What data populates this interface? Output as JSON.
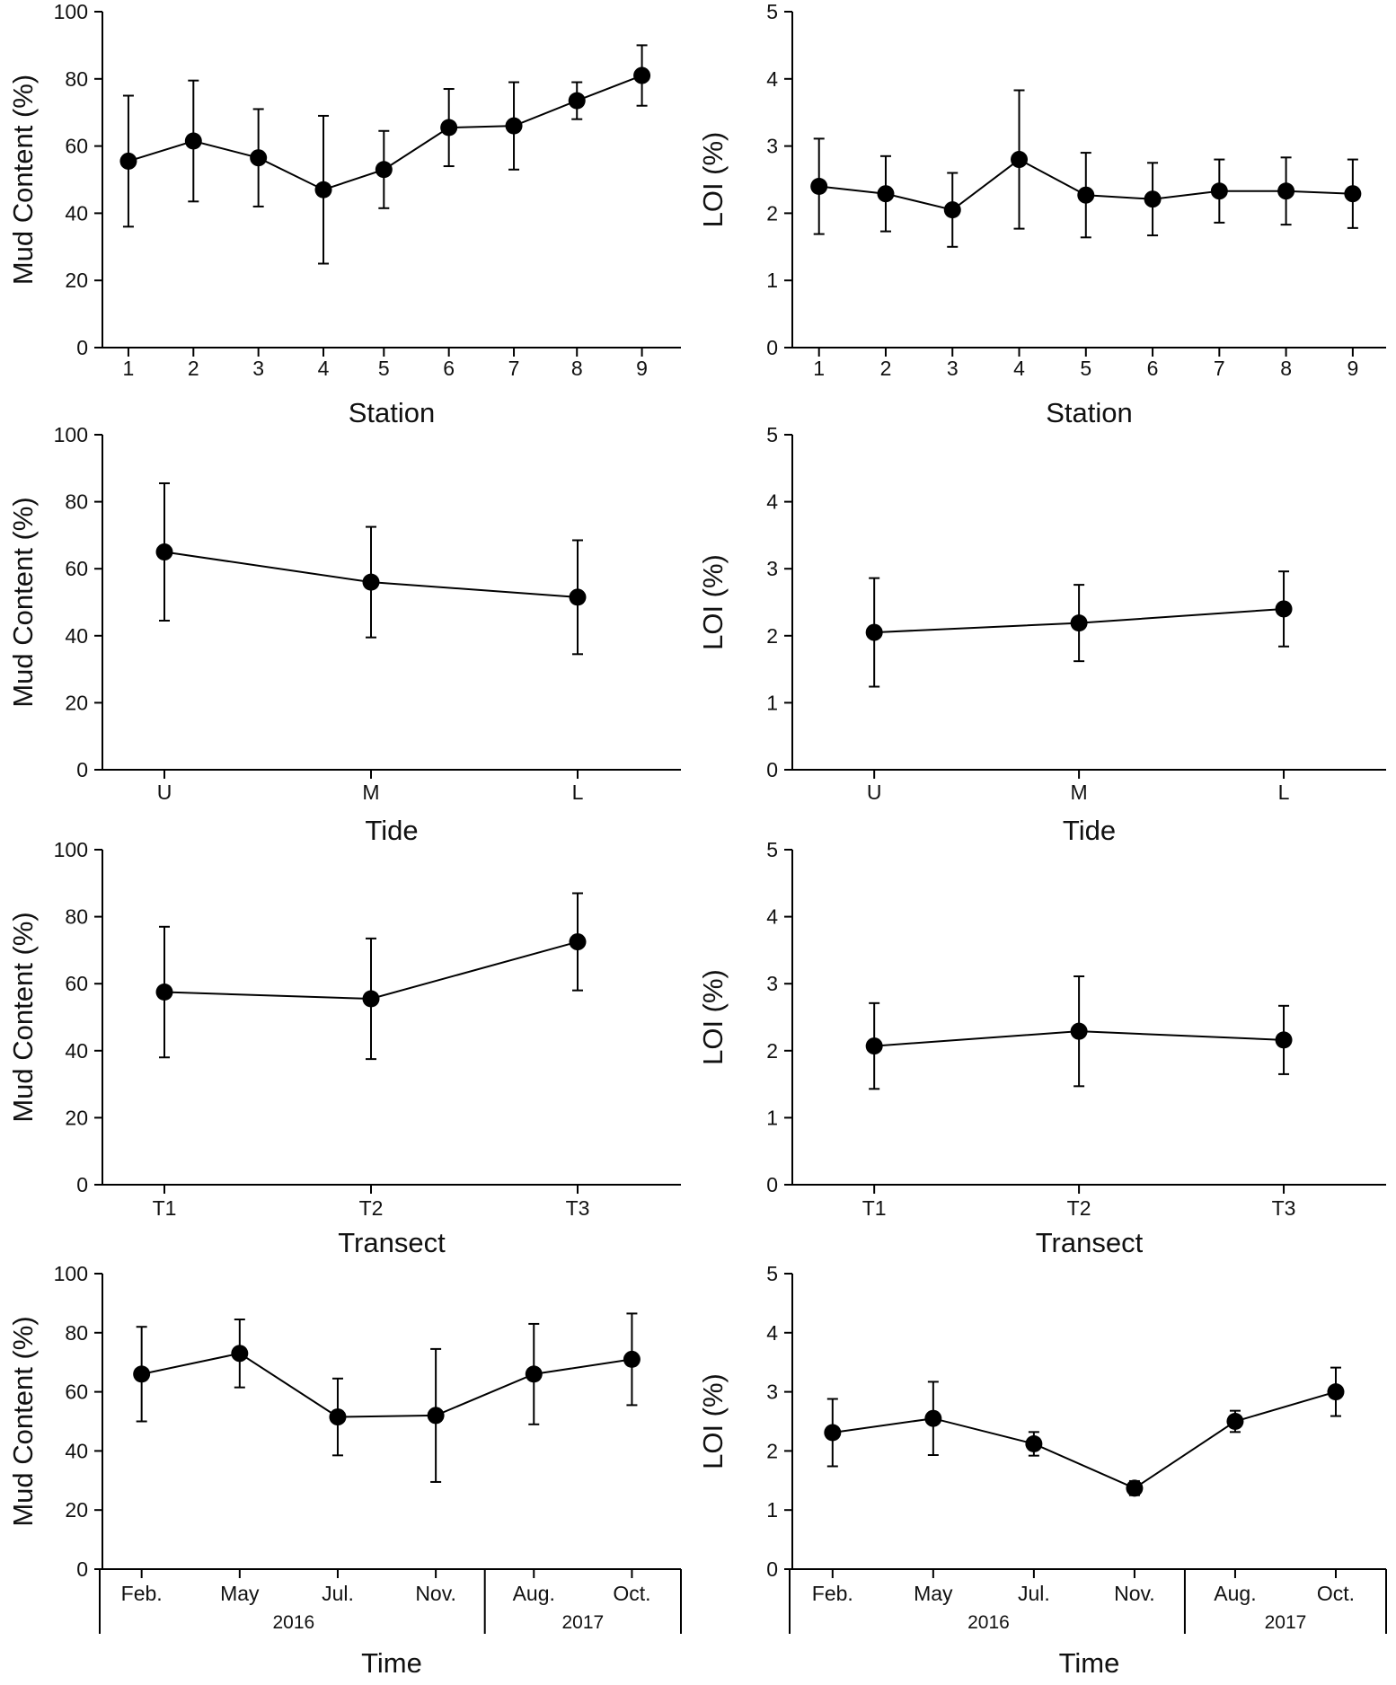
{
  "colors": {
    "ink": "#000000",
    "text": "#111111",
    "background": "#ffffff"
  },
  "chart_data": [
    {
      "id": "mud-station",
      "type": "line",
      "error_bars": true,
      "xlabel": "Station",
      "ylabel": "Mud Content (%)",
      "ylim": [
        0,
        100
      ],
      "yticks": [
        0,
        20,
        40,
        60,
        80,
        100
      ],
      "categories": [
        "1",
        "2",
        "3",
        "4",
        "5",
        "6",
        "7",
        "8",
        "9"
      ],
      "values": [
        55.5,
        61.5,
        56.5,
        47,
        53,
        65.5,
        66,
        73.5,
        81
      ],
      "errors": [
        19.5,
        18,
        14.5,
        22,
        11.5,
        11.5,
        13,
        5.5,
        9
      ],
      "x_positions": [
        1,
        2,
        3,
        4,
        4.93,
        5.93,
        6.93,
        7.9,
        8.9
      ],
      "xlim": [
        0.6,
        9.5
      ]
    },
    {
      "id": "loi-station",
      "type": "line",
      "error_bars": true,
      "xlabel": "Station",
      "ylabel": "LOI (%)",
      "ylim": [
        0,
        5
      ],
      "yticks": [
        0,
        1,
        2,
        3,
        4,
        5
      ],
      "categories": [
        "1",
        "2",
        "3",
        "4",
        "5",
        "6",
        "7",
        "8",
        "9"
      ],
      "values": [
        2.4,
        2.29,
        2.05,
        2.8,
        2.27,
        2.21,
        2.33,
        2.33,
        2.29
      ],
      "errors": [
        0.71,
        0.56,
        0.55,
        1.03,
        0.63,
        0.54,
        0.47,
        0.5,
        0.51
      ],
      "x_positions": [
        1,
        2,
        3,
        4,
        5,
        6,
        7,
        8,
        9
      ],
      "xlim": [
        0.6,
        9.5
      ]
    },
    {
      "id": "mud-tide",
      "type": "line",
      "error_bars": true,
      "xlabel": "Tide",
      "ylabel": "Mud Content (%)",
      "ylim": [
        0,
        100
      ],
      "yticks": [
        0,
        20,
        40,
        60,
        80,
        100
      ],
      "categories": [
        "U",
        "M",
        "L"
      ],
      "values": [
        65,
        56,
        51.5
      ],
      "errors": [
        20.5,
        16.5,
        17
      ],
      "x_positions": [
        1,
        2,
        3
      ],
      "xlim": [
        0.7,
        3.5
      ]
    },
    {
      "id": "loi-tide",
      "type": "line",
      "error_bars": true,
      "xlabel": "Tide",
      "ylabel": "LOI (%)",
      "ylim": [
        0,
        5
      ],
      "yticks": [
        0,
        1,
        2,
        3,
        4,
        5
      ],
      "categories": [
        "U",
        "M",
        "L"
      ],
      "values": [
        2.05,
        2.19,
        2.4
      ],
      "errors": [
        0.81,
        0.57,
        0.56
      ],
      "x_positions": [
        1,
        2,
        3
      ],
      "xlim": [
        0.6,
        3.5
      ]
    },
    {
      "id": "mud-transect",
      "type": "line",
      "error_bars": true,
      "xlabel": "Transect",
      "ylabel": "Mud Content (%)",
      "ylim": [
        0,
        100
      ],
      "yticks": [
        0,
        20,
        40,
        60,
        80,
        100
      ],
      "categories": [
        "T1",
        "T2",
        "T3"
      ],
      "values": [
        57.5,
        55.5,
        72.5
      ],
      "errors": [
        19.5,
        18,
        14.5
      ],
      "x_positions": [
        1,
        2,
        3
      ],
      "xlim": [
        0.7,
        3.5
      ]
    },
    {
      "id": "loi-transect",
      "type": "line",
      "error_bars": true,
      "xlabel": "Transect",
      "ylabel": "LOI (%)",
      "ylim": [
        0,
        5
      ],
      "yticks": [
        0,
        1,
        2,
        3,
        4,
        5
      ],
      "categories": [
        "T1",
        "T2",
        "T3"
      ],
      "values": [
        2.07,
        2.29,
        2.16
      ],
      "errors": [
        0.64,
        0.82,
        0.51
      ],
      "x_positions": [
        1,
        2,
        3
      ],
      "xlim": [
        0.6,
        3.5
      ]
    },
    {
      "id": "mud-time",
      "type": "line",
      "error_bars": true,
      "xlabel": "Time",
      "ylabel": "Mud Content (%)",
      "ylim": [
        0,
        100
      ],
      "yticks": [
        0,
        20,
        40,
        60,
        80,
        100
      ],
      "categories": [
        "Feb.",
        "May",
        "Jul.",
        "Nov.",
        "Aug.",
        "Oct."
      ],
      "values": [
        66,
        73,
        51.5,
        52,
        66,
        71
      ],
      "errors": [
        16,
        11.5,
        13,
        22.5,
        17,
        15.5
      ],
      "x_positions": [
        1,
        2,
        3,
        4,
        5,
        6
      ],
      "xlim": [
        0.6,
        6.5
      ],
      "year_groups": [
        {
          "label": "2016",
          "from": 1,
          "to": 4
        },
        {
          "label": "2017",
          "from": 5,
          "to": 6
        }
      ]
    },
    {
      "id": "loi-time",
      "type": "line",
      "error_bars": true,
      "xlabel": "Time",
      "ylabel": "LOI (%)",
      "ylim": [
        0,
        5
      ],
      "yticks": [
        0,
        1,
        2,
        3,
        4,
        5
      ],
      "categories": [
        "Feb.",
        "May",
        "Jul.",
        "Nov.",
        "Aug.",
        "Oct."
      ],
      "values": [
        2.31,
        2.55,
        2.12,
        1.37,
        2.5,
        3
      ],
      "errors": [
        0.57,
        0.62,
        0.2,
        0.12,
        0.18,
        0.41
      ],
      "x_positions": [
        1,
        2,
        3,
        4,
        5,
        6
      ],
      "xlim": [
        0.6,
        6.5
      ],
      "year_groups": [
        {
          "label": "2016",
          "from": 1,
          "to": 4
        },
        {
          "label": "2017",
          "from": 5,
          "to": 6
        }
      ]
    }
  ]
}
